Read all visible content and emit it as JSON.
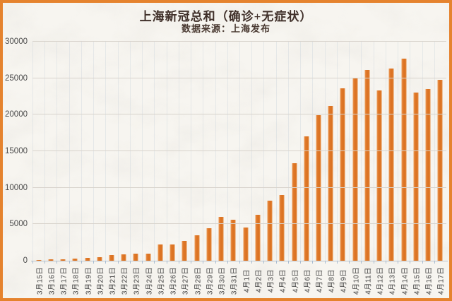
{
  "frame": {
    "border_color": "#e5832e",
    "background_color": "#f7f5f0",
    "texture": "rice-paper"
  },
  "chart_data": {
    "type": "bar",
    "title": "上海新冠总和（确诊+无症状）",
    "subtitle": "数据来源：上海发布",
    "categories": [
      "3月15日",
      "3月16日",
      "3月17日",
      "3月18日",
      "3月19日",
      "3月20日",
      "3月21日",
      "3月22日",
      "3月23日",
      "3月24日",
      "3月25日",
      "3月26日",
      "3月27日",
      "3月28日",
      "3月29日",
      "3月30日",
      "3月31日",
      "4月1日",
      "4月2日",
      "4月3日",
      "4月4日",
      "4月5日",
      "4月6日",
      "4月7日",
      "4月8日",
      "4月9日",
      "4月10日",
      "4月11日",
      "4月12日",
      "4月13日",
      "4月14日",
      "4月15日",
      "4月16日",
      "4月17日"
    ],
    "values": [
      139,
      202,
      158,
      260,
      374,
      509,
      758,
      896,
      981,
      983,
      2250,
      2269,
      2676,
      3500,
      4477,
      5982,
      5653,
      4502,
      6311,
      8226,
      9006,
      13354,
      17077,
      19982,
      21222,
      23624,
      24943,
      26087,
      23342,
      26330,
      27719,
      23072,
      23513,
      24820
    ],
    "yticks": [
      0,
      5000,
      10000,
      15000,
      20000,
      25000,
      30000
    ],
    "ylim": [
      0,
      30000
    ],
    "xlabel": "",
    "ylabel": "",
    "bar_color": "#e07b2a",
    "grid": "horizontal major lines every 5000, faint vertical line per category",
    "legend": "none",
    "x_label_rotation": -90
  }
}
